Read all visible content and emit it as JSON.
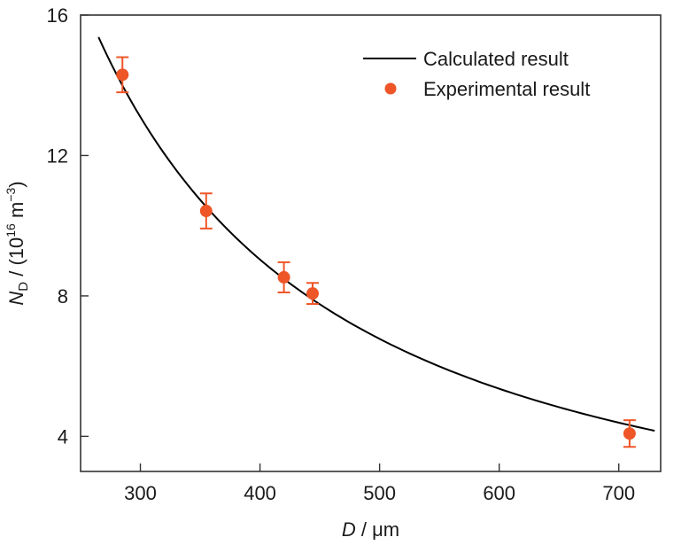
{
  "chart_data": {
    "type": "line",
    "title": "",
    "xlabel": {
      "symbol": "D",
      "unit": " / μm"
    },
    "ylabel": {
      "symbol": "N",
      "subscript": "D",
      "unit_prefix": " / (10",
      "superscript": "16",
      "unit_middle": " m",
      "unit_superscript": "−3",
      "unit_suffix": ")"
    },
    "xlim": [
      250,
      735
    ],
    "ylim": [
      3,
      16
    ],
    "xticks": [
      300,
      400,
      500,
      600,
      700
    ],
    "yticks": [
      4,
      8,
      12,
      16
    ],
    "xtick_labels": [
      "300",
      "400",
      "500",
      "600",
      "700"
    ],
    "ytick_labels": [
      "4",
      "8",
      "12",
      "16"
    ],
    "grid": false,
    "legend": {
      "position": "top-right",
      "entries": [
        "Calculated result",
        "Experimental result"
      ]
    },
    "series": [
      {
        "name": "Calculated result",
        "kind": "line",
        "color": "#000000",
        "x_range": [
          265,
          730
        ],
        "model": "power",
        "a_at_x0": 15.37,
        "x0": 265,
        "exponent": -1.29
      },
      {
        "name": "Experimental result",
        "kind": "scatter",
        "color": "#ee5527",
        "x": [
          285,
          355,
          420,
          444,
          709
        ],
        "y": [
          14.3,
          10.42,
          8.53,
          8.07,
          4.08
        ],
        "yerr": [
          0.5,
          0.5,
          0.43,
          0.3,
          0.38
        ]
      }
    ]
  }
}
